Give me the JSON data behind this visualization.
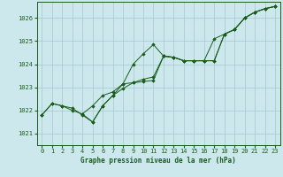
{
  "title": "Graphe pression niveau de la mer (hPa)",
  "bg_color": "#cce8ec",
  "grid_color": "#aacdd4",
  "line_color": "#1a5c1a",
  "marker_color": "#1a5c1a",
  "xlim": [
    -0.5,
    23.5
  ],
  "ylim": [
    1020.5,
    1026.7
  ],
  "yticks": [
    1021,
    1022,
    1023,
    1024,
    1025,
    1026
  ],
  "xticks": [
    0,
    1,
    2,
    3,
    4,
    5,
    6,
    7,
    8,
    9,
    10,
    11,
    12,
    13,
    14,
    15,
    16,
    17,
    18,
    19,
    20,
    21,
    22,
    23
  ],
  "series": [
    {
      "x": [
        0,
        1,
        2,
        3,
        4,
        5,
        6,
        7,
        8,
        9,
        10,
        11,
        12,
        13,
        14,
        15,
        16,
        17,
        18,
        19,
        20,
        21,
        22,
        23
      ],
      "y": [
        1021.8,
        1022.3,
        1022.2,
        1022.1,
        1021.8,
        1021.5,
        1022.2,
        1022.65,
        1022.95,
        1023.2,
        1023.25,
        1023.3,
        1024.35,
        1024.3,
        1024.15,
        1024.15,
        1024.15,
        1024.15,
        1025.3,
        1025.5,
        1026.0,
        1026.25,
        1026.4,
        1026.5
      ]
    },
    {
      "x": [
        0,
        1,
        2,
        3,
        4,
        5,
        6,
        7,
        8,
        9,
        10,
        11,
        12,
        13,
        14,
        15,
        16,
        17,
        18,
        19,
        20,
        21,
        22,
        23
      ],
      "y": [
        1021.8,
        1022.3,
        1022.2,
        1022.0,
        1021.85,
        1022.2,
        1022.65,
        1022.8,
        1023.15,
        1024.0,
        1024.45,
        1024.85,
        1024.35,
        1024.3,
        1024.15,
        1024.15,
        1024.15,
        1025.1,
        1025.3,
        1025.5,
        1026.0,
        1026.25,
        1026.4,
        1026.5
      ]
    },
    {
      "x": [
        4,
        5,
        6,
        7,
        8,
        9,
        10,
        11,
        12,
        13,
        14,
        15,
        16,
        17,
        18,
        19,
        20,
        21,
        22,
        23
      ],
      "y": [
        1021.85,
        1021.5,
        1022.2,
        1022.65,
        1023.15,
        1023.2,
        1023.35,
        1023.45,
        1024.35,
        1024.3,
        1024.15,
        1024.15,
        1024.15,
        1024.15,
        1025.3,
        1025.5,
        1026.0,
        1026.25,
        1026.4,
        1026.5
      ]
    }
  ]
}
